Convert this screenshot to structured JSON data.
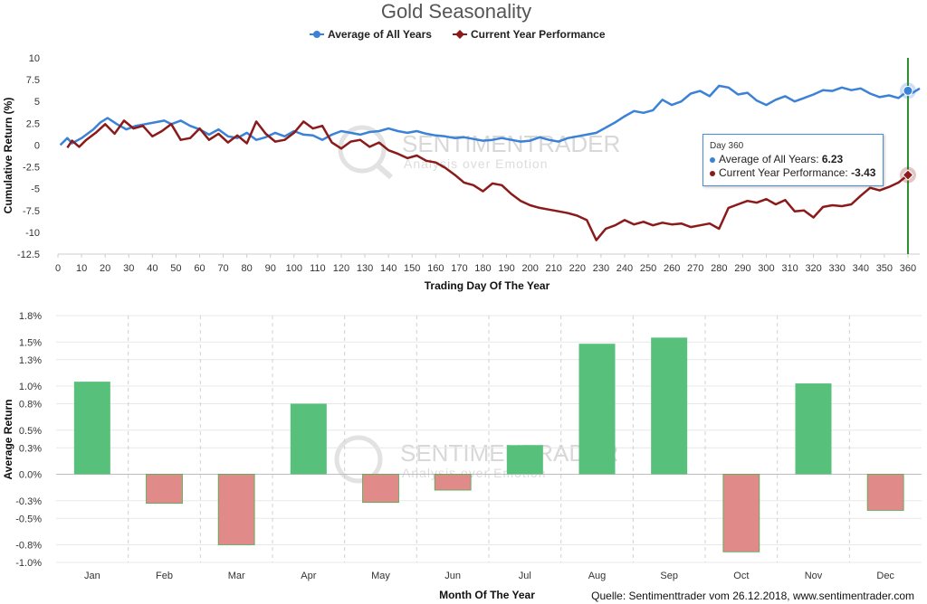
{
  "colors": {
    "avg": "#3b82d6",
    "current": "#8b1a1a",
    "positive": "#57c07a",
    "negative": "#e08a8a",
    "vline": "#2e8b2e"
  },
  "chart_data": [
    {
      "type": "line",
      "title": "Gold Seasonality",
      "xlabel": "Trading Day Of The Year",
      "ylabel": "Cumulative Return (%)",
      "xlim": [
        0,
        365
      ],
      "ylim": [
        -12.5,
        10
      ],
      "xticks": [
        "0",
        "10",
        "20",
        "30",
        "40",
        "50",
        "60",
        "70",
        "80",
        "90",
        "100",
        "110",
        "120",
        "130",
        "140",
        "150",
        "160",
        "170",
        "180",
        "190",
        "200",
        "210",
        "220",
        "230",
        "240",
        "250",
        "260",
        "270",
        "280",
        "290",
        "300",
        "310",
        "320",
        "330",
        "340",
        "350",
        "360"
      ],
      "yticks": [
        "10",
        "7.5",
        "5",
        "2.5",
        "0",
        "-2.5",
        "-5",
        "-7.5",
        "-10",
        "-12.5"
      ],
      "legend": [
        "Average of All Years",
        "Current Year Performance"
      ],
      "series": [
        {
          "name": "Average of All Years",
          "points": [
            [
              1,
              0
            ],
            [
              4,
              0.8
            ],
            [
              6,
              0.2
            ],
            [
              10,
              0.8
            ],
            [
              15,
              1.8
            ],
            [
              18,
              2.6
            ],
            [
              21,
              3.1
            ],
            [
              25,
              2.4
            ],
            [
              29,
              1.8
            ],
            [
              33,
              2.2
            ],
            [
              37,
              2.4
            ],
            [
              41,
              2.6
            ],
            [
              45,
              2.8
            ],
            [
              48,
              2.4
            ],
            [
              52,
              2.8
            ],
            [
              56,
              2.2
            ],
            [
              60,
              1.8
            ],
            [
              64,
              1.2
            ],
            [
              68,
              1.8
            ],
            [
              72,
              1.0
            ],
            [
              76,
              0.8
            ],
            [
              80,
              1.4
            ],
            [
              84,
              0.6
            ],
            [
              88,
              0.9
            ],
            [
              92,
              1.4
            ],
            [
              96,
              1.0
            ],
            [
              100,
              1.6
            ],
            [
              104,
              1.2
            ],
            [
              108,
              1.1
            ],
            [
              112,
              0.6
            ],
            [
              116,
              1.2
            ],
            [
              120,
              1.6
            ],
            [
              124,
              1.4
            ],
            [
              128,
              1.2
            ],
            [
              132,
              1.5
            ],
            [
              136,
              1.6
            ],
            [
              140,
              1.9
            ],
            [
              144,
              1.6
            ],
            [
              148,
              1.4
            ],
            [
              152,
              1.6
            ],
            [
              156,
              1.3
            ],
            [
              160,
              1.1
            ],
            [
              164,
              1.0
            ],
            [
              168,
              0.8
            ],
            [
              172,
              0.9
            ],
            [
              176,
              0.7
            ],
            [
              180,
              0.5
            ],
            [
              184,
              0.6
            ],
            [
              188,
              0.8
            ],
            [
              192,
              0.6
            ],
            [
              196,
              0.4
            ],
            [
              200,
              0.5
            ],
            [
              204,
              0.9
            ],
            [
              208,
              0.6
            ],
            [
              212,
              0.4
            ],
            [
              216,
              0.8
            ],
            [
              220,
              1.0
            ],
            [
              224,
              1.2
            ],
            [
              228,
              1.4
            ],
            [
              232,
              2.0
            ],
            [
              236,
              2.6
            ],
            [
              240,
              3.3
            ],
            [
              244,
              3.9
            ],
            [
              248,
              3.7
            ],
            [
              252,
              4.0
            ],
            [
              256,
              5.2
            ],
            [
              260,
              4.6
            ],
            [
              264,
              5.0
            ],
            [
              268,
              5.9
            ],
            [
              272,
              6.2
            ],
            [
              276,
              5.6
            ],
            [
              280,
              6.8
            ],
            [
              284,
              6.6
            ],
            [
              288,
              5.8
            ],
            [
              292,
              6.0
            ],
            [
              296,
              5.1
            ],
            [
              300,
              4.6
            ],
            [
              304,
              5.2
            ],
            [
              308,
              5.6
            ],
            [
              312,
              5.0
            ],
            [
              316,
              5.4
            ],
            [
              320,
              5.8
            ],
            [
              324,
              6.3
            ],
            [
              328,
              6.2
            ],
            [
              332,
              6.6
            ],
            [
              336,
              6.3
            ],
            [
              340,
              6.5
            ],
            [
              344,
              5.9
            ],
            [
              348,
              5.5
            ],
            [
              352,
              5.7
            ],
            [
              356,
              5.4
            ],
            [
              360,
              6.23
            ],
            [
              362,
              6.0
            ],
            [
              365,
              6.5
            ]
          ]
        },
        {
          "name": "Current Year Performance",
          "points": [
            [
              4,
              -0.3
            ],
            [
              6,
              0.5
            ],
            [
              9,
              -0.2
            ],
            [
              12,
              0.6
            ],
            [
              16,
              1.4
            ],
            [
              20,
              2.4
            ],
            [
              24,
              1.3
            ],
            [
              28,
              2.8
            ],
            [
              32,
              1.9
            ],
            [
              36,
              2.2
            ],
            [
              40,
              1.0
            ],
            [
              44,
              1.6
            ],
            [
              48,
              2.4
            ],
            [
              52,
              0.6
            ],
            [
              56,
              0.8
            ],
            [
              60,
              1.9
            ],
            [
              64,
              0.6
            ],
            [
              68,
              1.3
            ],
            [
              72,
              0.3
            ],
            [
              76,
              1.1
            ],
            [
              80,
              0.2
            ],
            [
              84,
              2.7
            ],
            [
              88,
              1.3
            ],
            [
              92,
              0.4
            ],
            [
              96,
              0.6
            ],
            [
              100,
              1.4
            ],
            [
              104,
              2.7
            ],
            [
              108,
              1.9
            ],
            [
              112,
              2.2
            ],
            [
              116,
              0.3
            ],
            [
              120,
              -0.4
            ],
            [
              124,
              0.4
            ],
            [
              128,
              0.6
            ],
            [
              132,
              -0.2
            ],
            [
              136,
              0.3
            ],
            [
              140,
              -0.6
            ],
            [
              144,
              -1.0
            ],
            [
              148,
              -1.5
            ],
            [
              152,
              -1.2
            ],
            [
              156,
              -1.8
            ],
            [
              160,
              -2.0
            ],
            [
              164,
              -2.6
            ],
            [
              168,
              -3.4
            ],
            [
              172,
              -4.3
            ],
            [
              176,
              -4.6
            ],
            [
              180,
              -5.3
            ],
            [
              184,
              -4.4
            ],
            [
              188,
              -4.6
            ],
            [
              192,
              -5.6
            ],
            [
              196,
              -6.4
            ],
            [
              200,
              -6.9
            ],
            [
              204,
              -7.2
            ],
            [
              208,
              -7.4
            ],
            [
              212,
              -7.6
            ],
            [
              216,
              -7.8
            ],
            [
              220,
              -8.1
            ],
            [
              224,
              -8.6
            ],
            [
              228,
              -10.9
            ],
            [
              232,
              -9.6
            ],
            [
              236,
              -9.2
            ],
            [
              240,
              -8.6
            ],
            [
              244,
              -9.1
            ],
            [
              248,
              -8.8
            ],
            [
              252,
              -9.2
            ],
            [
              256,
              -8.9
            ],
            [
              260,
              -9.1
            ],
            [
              264,
              -9.0
            ],
            [
              268,
              -9.4
            ],
            [
              272,
              -9.2
            ],
            [
              276,
              -9.0
            ],
            [
              280,
              -9.6
            ],
            [
              284,
              -7.2
            ],
            [
              288,
              -6.8
            ],
            [
              292,
              -6.4
            ],
            [
              296,
              -6.6
            ],
            [
              300,
              -6.2
            ],
            [
              304,
              -6.8
            ],
            [
              308,
              -6.3
            ],
            [
              312,
              -7.6
            ],
            [
              316,
              -7.5
            ],
            [
              320,
              -8.3
            ],
            [
              324,
              -7.1
            ],
            [
              328,
              -6.9
            ],
            [
              332,
              -7.0
            ],
            [
              336,
              -6.8
            ],
            [
              340,
              -5.8
            ],
            [
              344,
              -4.9
            ],
            [
              348,
              -5.2
            ],
            [
              352,
              -4.8
            ],
            [
              356,
              -4.3
            ],
            [
              360,
              -3.43
            ]
          ]
        }
      ],
      "tooltip": {
        "day": "Day 360",
        "avg_label": "Average of All Years: ",
        "avg_value": "6.23",
        "cur_label": "Current Year Performance: ",
        "cur_value": "-3.43"
      }
    },
    {
      "type": "bar",
      "xlabel": "Month Of The Year",
      "ylabel": "Average Return",
      "ylim": [
        -1.0,
        1.8
      ],
      "yticks": [
        "1.8%",
        "1.5%",
        "1.3%",
        "1.0%",
        "0.8%",
        "0.5%",
        "0.3%",
        "0.0%",
        "-0.3%",
        "-0.5%",
        "-0.8%",
        "-1.0%"
      ],
      "categories": [
        "Jan",
        "Feb",
        "Mar",
        "Apr",
        "May",
        "Jun",
        "Jul",
        "Aug",
        "Sep",
        "Oct",
        "Nov",
        "Dec"
      ],
      "values": [
        1.05,
        -0.33,
        -0.8,
        0.8,
        -0.32,
        -0.18,
        0.33,
        1.48,
        1.55,
        -0.88,
        1.03,
        -0.41
      ]
    }
  ],
  "watermark": {
    "brand": "SENTIMENTRADER",
    "tagline": "Analysis over Emotion"
  },
  "source": "Quelle: Sentimenttrader vom 26.12.2018, www.sentimentrader.com"
}
